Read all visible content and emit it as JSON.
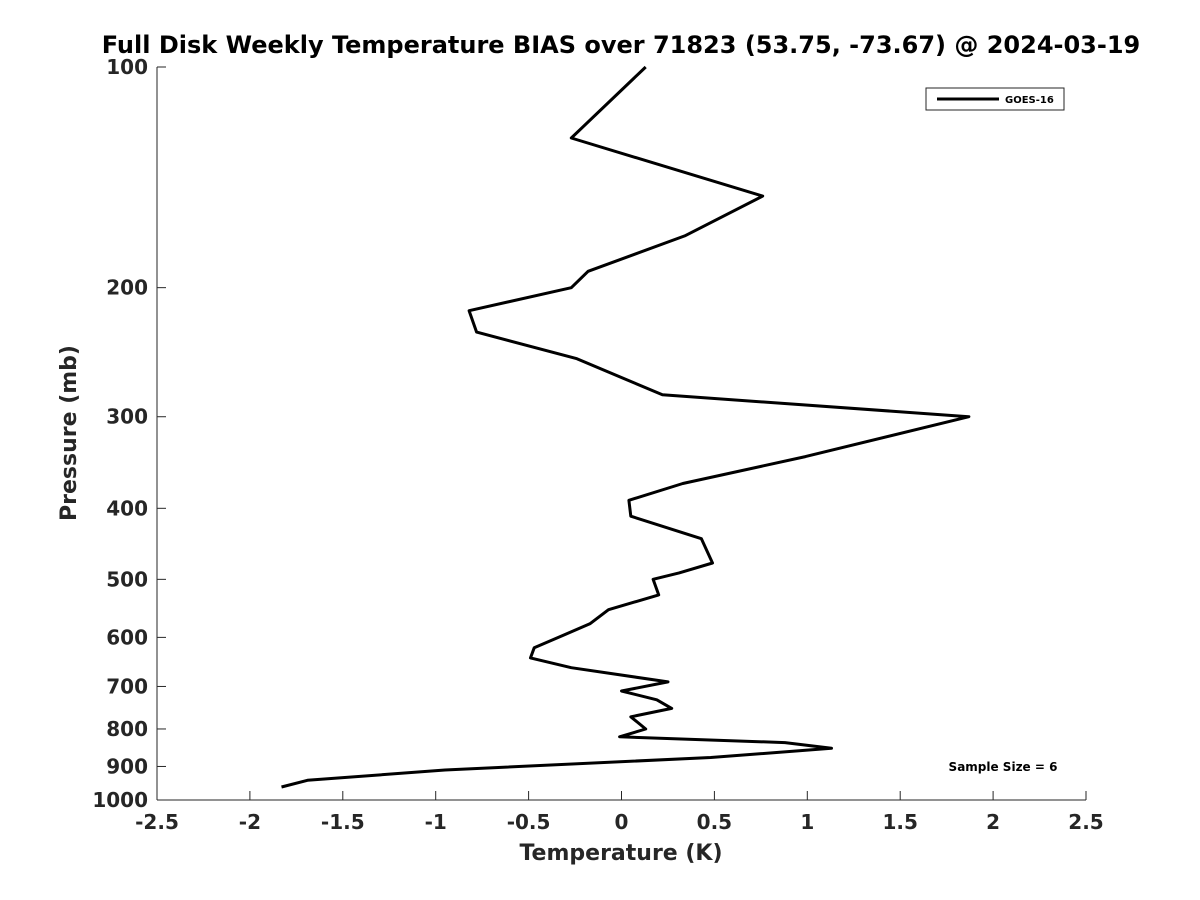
{
  "chart_data": {
    "type": "line",
    "title": "Full Disk Weekly Temperature BIAS over 71823 (53.75, -73.67) @ 2024-03-19",
    "xlabel": "Temperature (K)",
    "ylabel": "Pressure (mb)",
    "xlim": [
      -2.5,
      2.5
    ],
    "ylim": [
      100,
      1000
    ],
    "y_scale": "log",
    "y_reversed": true,
    "x_ticks": [
      -2.5,
      -2,
      -1.5,
      -1,
      -0.5,
      0,
      0.5,
      1,
      1.5,
      2,
      2.5
    ],
    "x_tick_labels": [
      "-2.5",
      "-2",
      "-1.5",
      "-1",
      "-0.5",
      "0",
      "0.5",
      "1",
      "1.5",
      "2",
      "2.5"
    ],
    "y_ticks": [
      100,
      200,
      300,
      400,
      500,
      600,
      700,
      800,
      900,
      1000
    ],
    "y_tick_labels": [
      "100",
      "200",
      "300",
      "400",
      "500",
      "600",
      "700",
      "800",
      "900",
      "1000"
    ],
    "grid": false,
    "legend_position": "top-right",
    "line_color": "#000000",
    "series": [
      {
        "name": "GOES-16",
        "points": [
          {
            "x": 0.13,
            "y": 100
          },
          {
            "x": -0.27,
            "y": 125
          },
          {
            "x": 0.76,
            "y": 150
          },
          {
            "x": 0.34,
            "y": 170
          },
          {
            "x": -0.18,
            "y": 190
          },
          {
            "x": -0.27,
            "y": 200
          },
          {
            "x": -0.82,
            "y": 215
          },
          {
            "x": -0.78,
            "y": 230
          },
          {
            "x": -0.24,
            "y": 250
          },
          {
            "x": 0.22,
            "y": 280
          },
          {
            "x": 1.87,
            "y": 300
          },
          {
            "x": 0.99,
            "y": 340
          },
          {
            "x": 0.33,
            "y": 370
          },
          {
            "x": 0.04,
            "y": 390
          },
          {
            "x": 0.05,
            "y": 410
          },
          {
            "x": 0.43,
            "y": 440
          },
          {
            "x": 0.49,
            "y": 475
          },
          {
            "x": 0.31,
            "y": 490
          },
          {
            "x": 0.17,
            "y": 500
          },
          {
            "x": 0.2,
            "y": 525
          },
          {
            "x": -0.07,
            "y": 550
          },
          {
            "x": -0.17,
            "y": 575
          },
          {
            "x": -0.47,
            "y": 620
          },
          {
            "x": -0.49,
            "y": 640
          },
          {
            "x": -0.27,
            "y": 660
          },
          {
            "x": 0.25,
            "y": 690
          },
          {
            "x": 0,
            "y": 710
          },
          {
            "x": 0.19,
            "y": 730
          },
          {
            "x": 0.27,
            "y": 750
          },
          {
            "x": 0.05,
            "y": 770
          },
          {
            "x": 0.13,
            "y": 800
          },
          {
            "x": -0.01,
            "y": 820
          },
          {
            "x": 0.88,
            "y": 835
          },
          {
            "x": 1.13,
            "y": 850
          },
          {
            "x": 0.48,
            "y": 875
          },
          {
            "x": -0.95,
            "y": 910
          },
          {
            "x": -1.69,
            "y": 940
          },
          {
            "x": -1.83,
            "y": 960
          }
        ]
      }
    ],
    "annotations": [
      {
        "text": "Sample Size = 6",
        "position": "bottom-right"
      }
    ]
  }
}
